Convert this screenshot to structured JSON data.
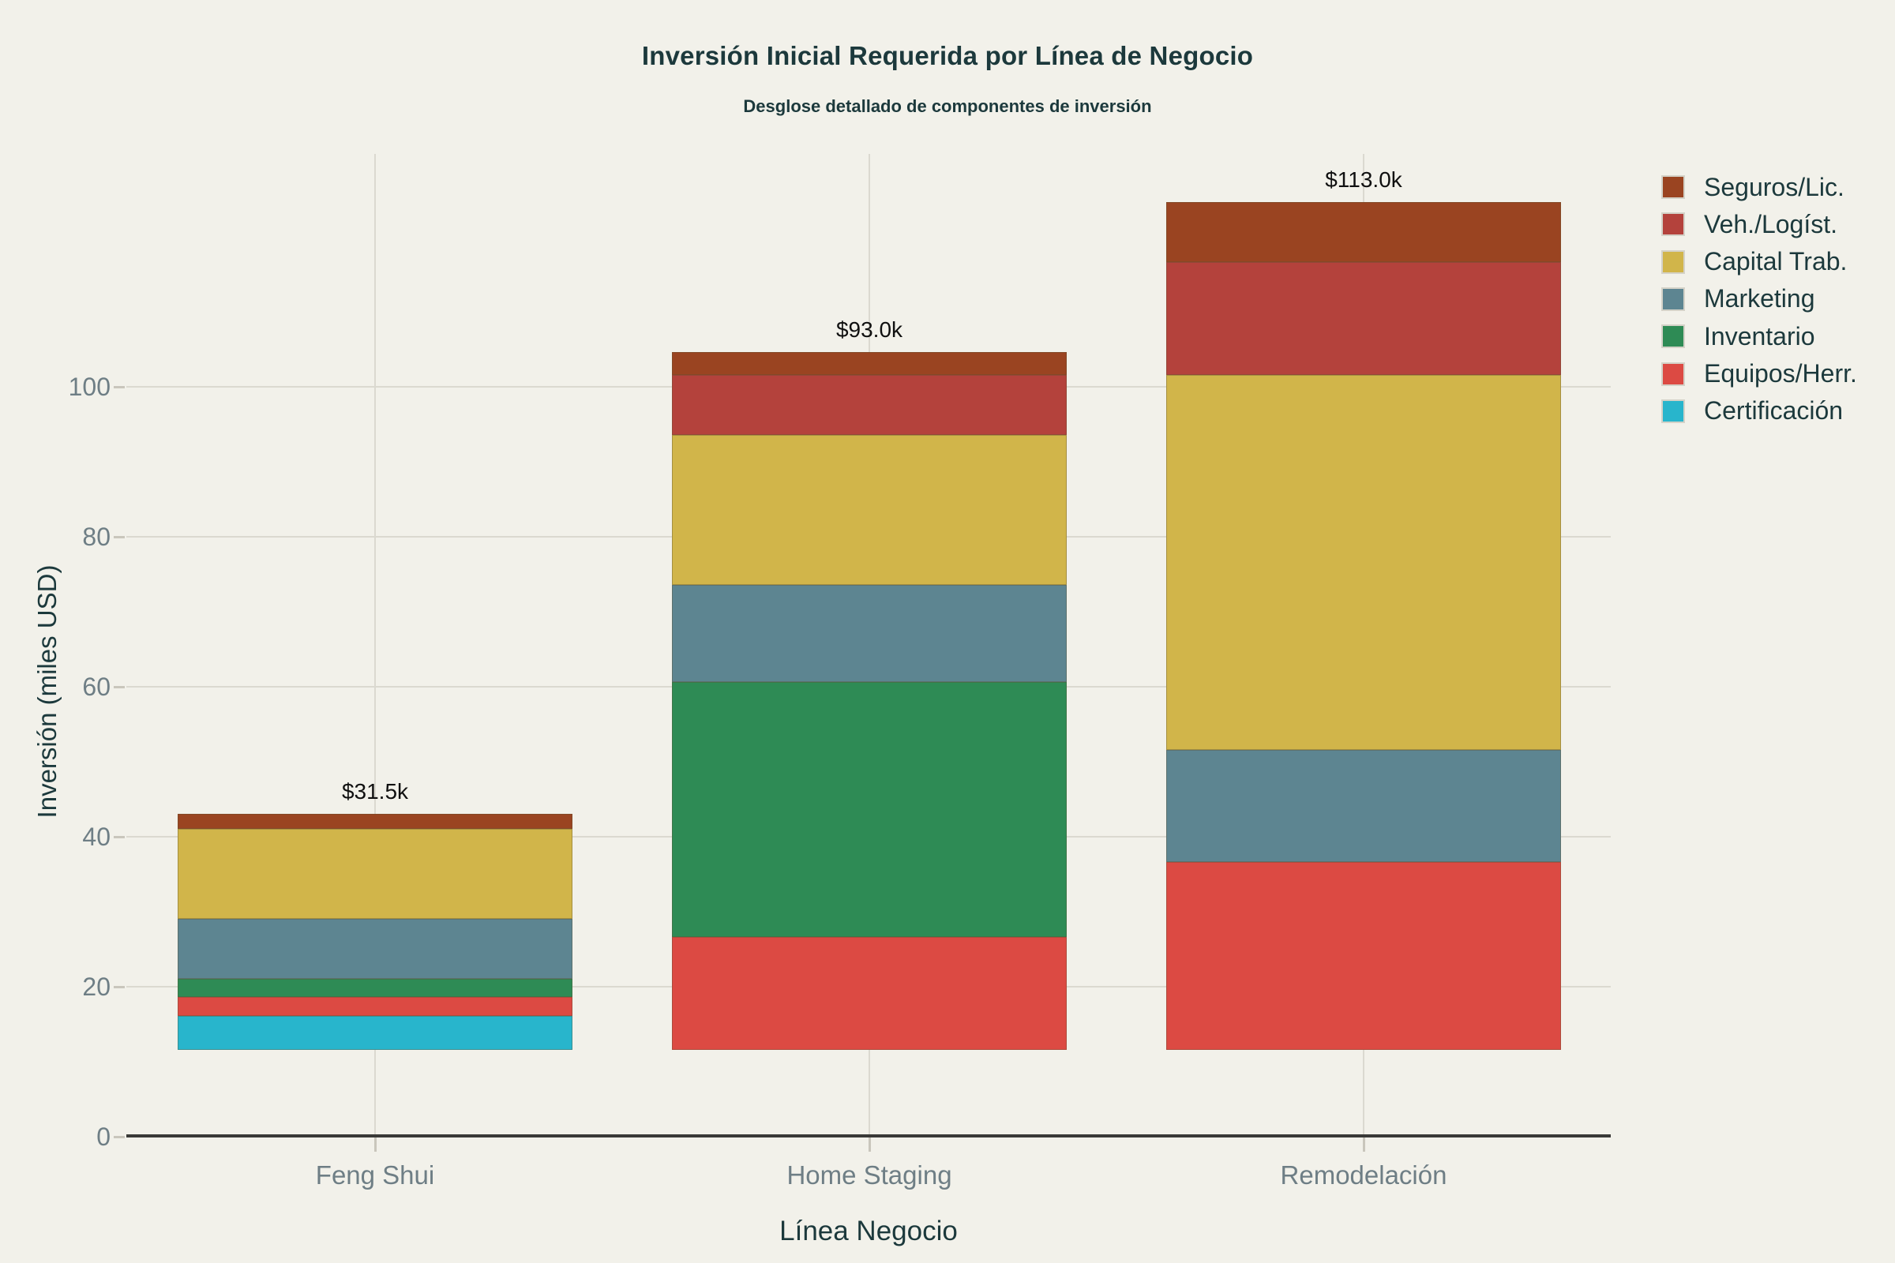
{
  "title": "Inversión Inicial Requerida por Línea de Negocio",
  "subtitle": "Desglose detallado de componentes de inversión",
  "axes": {
    "y_title": "Inversión (miles USD)",
    "x_title": "Línea Negocio",
    "y_tick_labels": [
      "0",
      "20",
      "40",
      "60",
      "80",
      "100"
    ],
    "x_tick_labels": [
      "Feng Shui",
      "Home Staging",
      "Remodelación"
    ]
  },
  "colors": {
    "background": "#f2f1ea",
    "title_text": "#1c393c",
    "tick_text": "#6e7e85",
    "gridline": "#dbd9d0",
    "axis_line": "#3a3a38",
    "bar_label_text": "#101010"
  },
  "chart_data": {
    "type": "bar",
    "stacked": true,
    "title": "Inversión Inicial Requerida por Línea de Negocio",
    "subtitle": "Desglose detallado de componentes de inversión",
    "xlabel": "Línea Negocio",
    "ylabel": "Inversión (miles USD)",
    "categories": [
      "Feng Shui",
      "Home Staging",
      "Remodelación"
    ],
    "series_bottom_to_top": [
      {
        "name": "Certificación",
        "color": "#28b5cc",
        "values": [
          4.5,
          0,
          0
        ]
      },
      {
        "name": "Equipos/Herr.",
        "color": "#dc4a43",
        "values": [
          2.5,
          15,
          25
        ]
      },
      {
        "name": "Inventario",
        "color": "#2e8b55",
        "values": [
          2.5,
          34,
          0
        ]
      },
      {
        "name": "Marketing",
        "color": "#5d8591",
        "values": [
          8,
          13,
          15
        ]
      },
      {
        "name": "Capital Trab.",
        "color": "#d1b54a",
        "values": [
          12,
          20,
          50
        ]
      },
      {
        "name": "Veh./Logíst.",
        "color": "#b4423c",
        "values": [
          0,
          8,
          15
        ]
      },
      {
        "name": "Seguros/Lic.",
        "color": "#9a4421",
        "values": [
          2,
          3,
          8
        ]
      }
    ],
    "totals": [
      31.5,
      93.0,
      113.0
    ],
    "total_labels": [
      "$31.5k",
      "$93.0k",
      "$113.0k"
    ],
    "yticks": [
      0,
      20,
      40,
      60,
      80,
      100
    ],
    "ylim": [
      0,
      131
    ],
    "grid": true,
    "legend_position": "right",
    "legend_order_top_to_bottom": [
      "Seguros/Lic.",
      "Veh./Logíst.",
      "Capital Trab.",
      "Marketing",
      "Inventario",
      "Equipos/Herr.",
      "Certificación"
    ],
    "bar_base_offset": 11.6
  }
}
